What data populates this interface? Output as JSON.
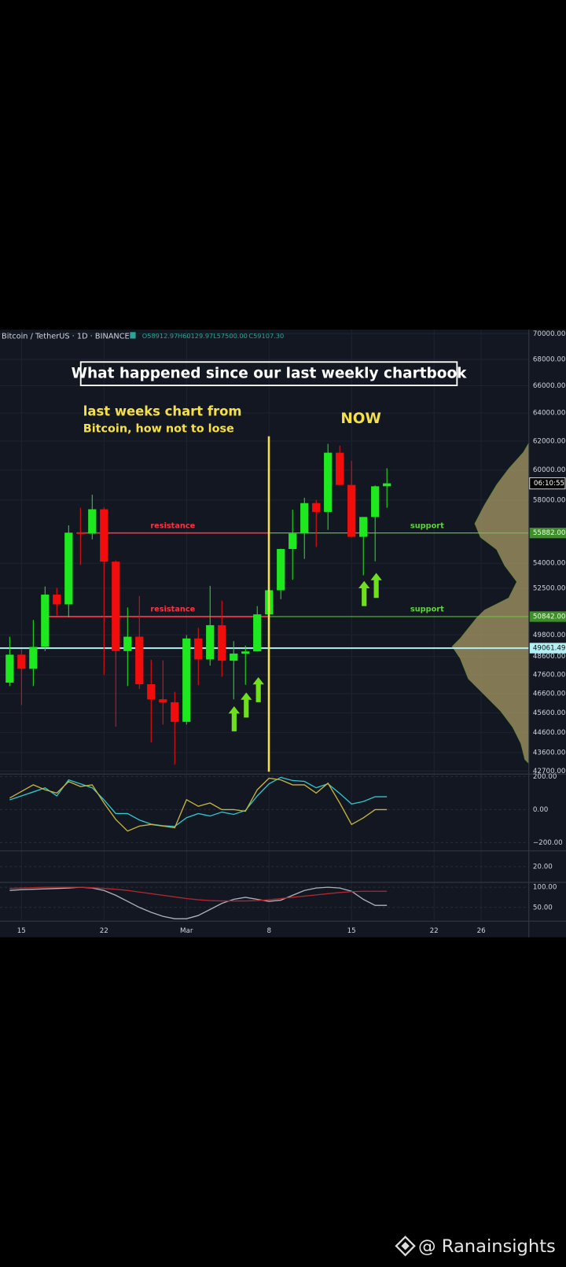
{
  "chart_data": [
    {
      "type": "candlestick",
      "legend_title": "Bitcoin / TetherUS · 1D · BINANCE",
      "ohlc_legend": [
        "O58912.97",
        "H60129.97",
        "L57500.00",
        "C59107.30"
      ],
      "title": "What happened since our last weekly chartbook",
      "annotations": [
        "last weeks chart from",
        "Bitcoin, how not to lose",
        "NOW"
      ],
      "categories": [
        null,
        "15",
        null,
        null,
        null,
        null,
        null,
        null,
        "22",
        null,
        null,
        null,
        null,
        null,
        null,
        "Mar",
        null,
        null,
        null,
        null,
        null,
        null,
        "8",
        null,
        null,
        null,
        null,
        null,
        null,
        "15",
        null,
        null,
        null,
        null,
        null,
        null,
        "22",
        null,
        null,
        null,
        "26",
        null,
        null,
        null,
        null
      ],
      "open": [
        47185,
        48700,
        47930,
        49130,
        52120,
        51550,
        55900,
        55840,
        57400,
        54100,
        48900,
        49700,
        47100,
        46300,
        46150,
        45140,
        49600,
        48440,
        50350,
        48370,
        48760,
        48880,
        50970,
        52380,
        54880,
        55850,
        57800,
        57230,
        61190,
        59000,
        55640,
        56900,
        58912.97,
        null,
        null,
        null,
        null,
        null,
        null,
        null,
        null,
        null,
        null,
        null,
        null
      ],
      "high": [
        49700,
        49000,
        50650,
        52600,
        52530,
        56370,
        57500,
        58350,
        57530,
        54180,
        51370,
        52040,
        48420,
        48390,
        46700,
        49790,
        50200,
        52640,
        51770,
        49450,
        49200,
        51450,
        52400,
        54900,
        57380,
        58150,
        58000,
        61800,
        61680,
        60630,
        56900,
        58970,
        60129.97,
        null,
        null,
        null,
        null,
        null,
        null,
        null,
        null,
        null,
        null,
        null,
        null
      ],
      "low": [
        47000,
        46000,
        47000,
        48900,
        50900,
        50800,
        53900,
        55480,
        47600,
        44890,
        47000,
        46850,
        44100,
        45000,
        43000,
        45000,
        47050,
        48100,
        47500,
        46300,
        47070,
        48880,
        49300,
        51850,
        53000,
        54270,
        55000,
        56080,
        59000,
        55600,
        53270,
        54120,
        57500,
        null,
        null,
        null,
        null,
        null,
        null,
        null,
        null,
        null,
        null,
        null,
        null
      ],
      "close": [
        48700,
        47930,
        49130,
        52120,
        51550,
        55900,
        55840,
        57400,
        54100,
        48900,
        49700,
        47100,
        46300,
        46150,
        45140,
        49600,
        48440,
        50350,
        48370,
        48760,
        48880,
        50970,
        52380,
        54880,
        55850,
        57800,
        57230,
        61190,
        59000,
        55640,
        56900,
        58910,
        59107.3,
        null,
        null,
        null,
        null,
        null,
        null,
        null,
        null,
        null,
        null,
        null,
        null
      ],
      "up_color": "#1ee81e",
      "down_color": "#f20d0d",
      "log_scale": true,
      "ylim": [
        42550,
        70320
      ],
      "yticks": [
        {
          "value": 70000,
          "label": "70000.00"
        },
        {
          "value": 68000,
          "label": "68000.00"
        },
        {
          "value": 66000,
          "label": "66000.00"
        },
        {
          "value": 64000,
          "label": "64000.00"
        },
        {
          "value": 62000,
          "label": "62000.00"
        },
        {
          "value": 60000,
          "label": "60000.00"
        },
        {
          "value": 58000,
          "label": "58000.00"
        },
        {
          "value": 54000,
          "label": "54000.00"
        },
        {
          "value": 52500,
          "label": "52500.00"
        },
        {
          "value": 49800,
          "label": "49800.00"
        },
        {
          "value": 48600,
          "label": "48600.00"
        },
        {
          "value": 47600,
          "label": "47600.00"
        },
        {
          "value": 46600,
          "label": "46600.00"
        },
        {
          "value": 45600,
          "label": "45600.00"
        },
        {
          "value": 44600,
          "label": "44600.00"
        },
        {
          "value": 43600,
          "label": "43600.00"
        },
        {
          "value": 42700,
          "label": "42700.00"
        }
      ],
      "grid": true,
      "levels": [
        {
          "value": 55882,
          "label": "55882.00",
          "left_name": "resistance",
          "right_name": "support",
          "left_color": "#f23645",
          "right_color": "#5fd13a"
        },
        {
          "value": 50842,
          "label": "50842.00",
          "left_name": "resistance",
          "right_name": "support",
          "left_color": "#f23645",
          "right_color": "#5fd13a"
        },
        {
          "value": 49061.49,
          "label": "49061.49",
          "color": "#b2f0f5"
        }
      ],
      "countdown": "06:10:55"
    },
    {
      "type": "line",
      "ylim": [
        -250,
        215
      ],
      "yticks": [
        {
          "value": 200,
          "label": "200.00"
        },
        {
          "value": 0,
          "label": "0.00"
        },
        {
          "value": -200,
          "label": "−200.00"
        }
      ],
      "series": [
        {
          "color": "#2fc6cf",
          "values": [
            59,
            83,
            107,
            132,
            83,
            180,
            156,
            132,
            59,
            -24,
            -24,
            -63,
            -88,
            -98,
            -102,
            -49,
            -24,
            -39,
            -15,
            -29,
            -5,
            83,
            156,
            195,
            176,
            171,
            132,
            156,
            98,
            34,
            49,
            78,
            78
          ]
        },
        {
          "color": "#c8b43a",
          "values": [
            70,
            110,
            150,
            120,
            100,
            170,
            140,
            150,
            40,
            -60,
            -130,
            -100,
            -90,
            -100,
            -110,
            60,
            20,
            40,
            0,
            0,
            -10,
            120,
            190,
            180,
            150,
            150,
            100,
            160,
            40,
            -90,
            -50,
            0,
            0
          ]
        }
      ]
    },
    {
      "type": "line",
      "ylim": [
        0,
        40
      ],
      "yticks": [
        {
          "value": 20,
          "label": "20.00"
        }
      ],
      "series": []
    },
    {
      "type": "line",
      "ylim": [
        16,
        112
      ],
      "yticks": [
        {
          "value": 100,
          "label": "100.00"
        },
        {
          "value": 50,
          "label": "50.00"
        }
      ],
      "series": [
        {
          "color": "#aeb1b8",
          "values": [
            92,
            94,
            95,
            96,
            97,
            98,
            100,
            98,
            92,
            80,
            65,
            50,
            38,
            28,
            22,
            22,
            30,
            45,
            60,
            70,
            75,
            70,
            65,
            68,
            80,
            92,
            98,
            100,
            98,
            90,
            70,
            55,
            55
          ]
        },
        {
          "color": "#b3262f",
          "values": [
            97,
            98,
            99,
            100,
            100,
            100,
            100,
            99,
            97,
            95,
            92,
            88,
            84,
            80,
            76,
            72,
            69,
            67,
            66,
            66,
            66,
            67,
            69,
            72,
            75,
            78,
            81,
            84,
            87,
            89,
            90,
            90,
            90
          ]
        }
      ]
    }
  ],
  "watermark": "@ Ranainsights"
}
